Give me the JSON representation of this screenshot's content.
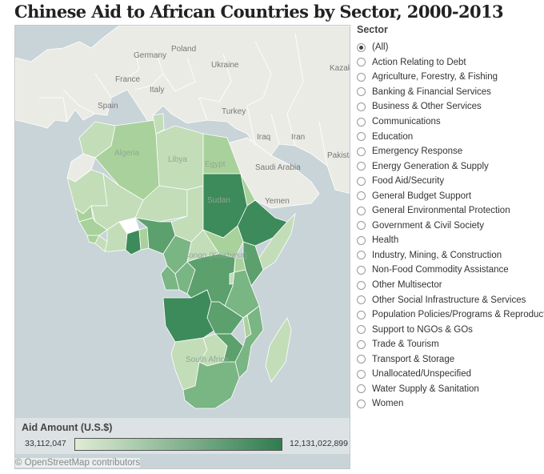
{
  "title": "Chinese Aid to African Countries by Sector, 2000-2013",
  "map": {
    "labels": {
      "poland": "Poland",
      "germany": "Germany",
      "ukraine": "Ukraine",
      "kazakhstan": "Kazak",
      "france": "France",
      "italy": "Italy",
      "spain": "Spain",
      "turkey": "Turkey",
      "iraq": "Iraq",
      "iran": "Iran",
      "pakistan": "Pakista",
      "saudi_arabia": "Saudi Arabia",
      "yemen": "Yemen",
      "algeria": "Algeria",
      "libya": "Libya",
      "egypt": "Egypt",
      "sudan": "Sudan",
      "congo": "Congo (Kinshasa)",
      "south_africa": "South Africa"
    },
    "attribution": "© OpenStreetMap contributors"
  },
  "legend": {
    "title": "Aid Amount (U.S.$)",
    "min": "33,112,047",
    "max": "12,131,022,899",
    "color_low": "#e0ecd6",
    "color_high": "#2e7d4f"
  },
  "filter": {
    "title": "Sector",
    "selected_index": 0,
    "options": [
      "(All)",
      "Action Relating to Debt",
      "Agriculture, Forestry, & Fishing",
      "Banking & Financial Services",
      "Business & Other Services",
      "Communications",
      "Education",
      "Emergency Response",
      "Energy Generation & Supply",
      "Food Aid/Security",
      "General Budget Support",
      "General Environmental Protection",
      "Government & Civil Society",
      "Health",
      "Industry, Mining, & Construction",
      "Non-Food Commodity Assistance",
      "Other Multisector",
      "Other Social Infrastructure & Services",
      "Population Policies/Programs & Reproductive Health",
      "Support to NGOs & GOs",
      "Trade & Tourism",
      "Transport & Storage",
      "Unallocated/Unspecified",
      "Water Supply & Sanitation",
      "Women"
    ]
  }
}
